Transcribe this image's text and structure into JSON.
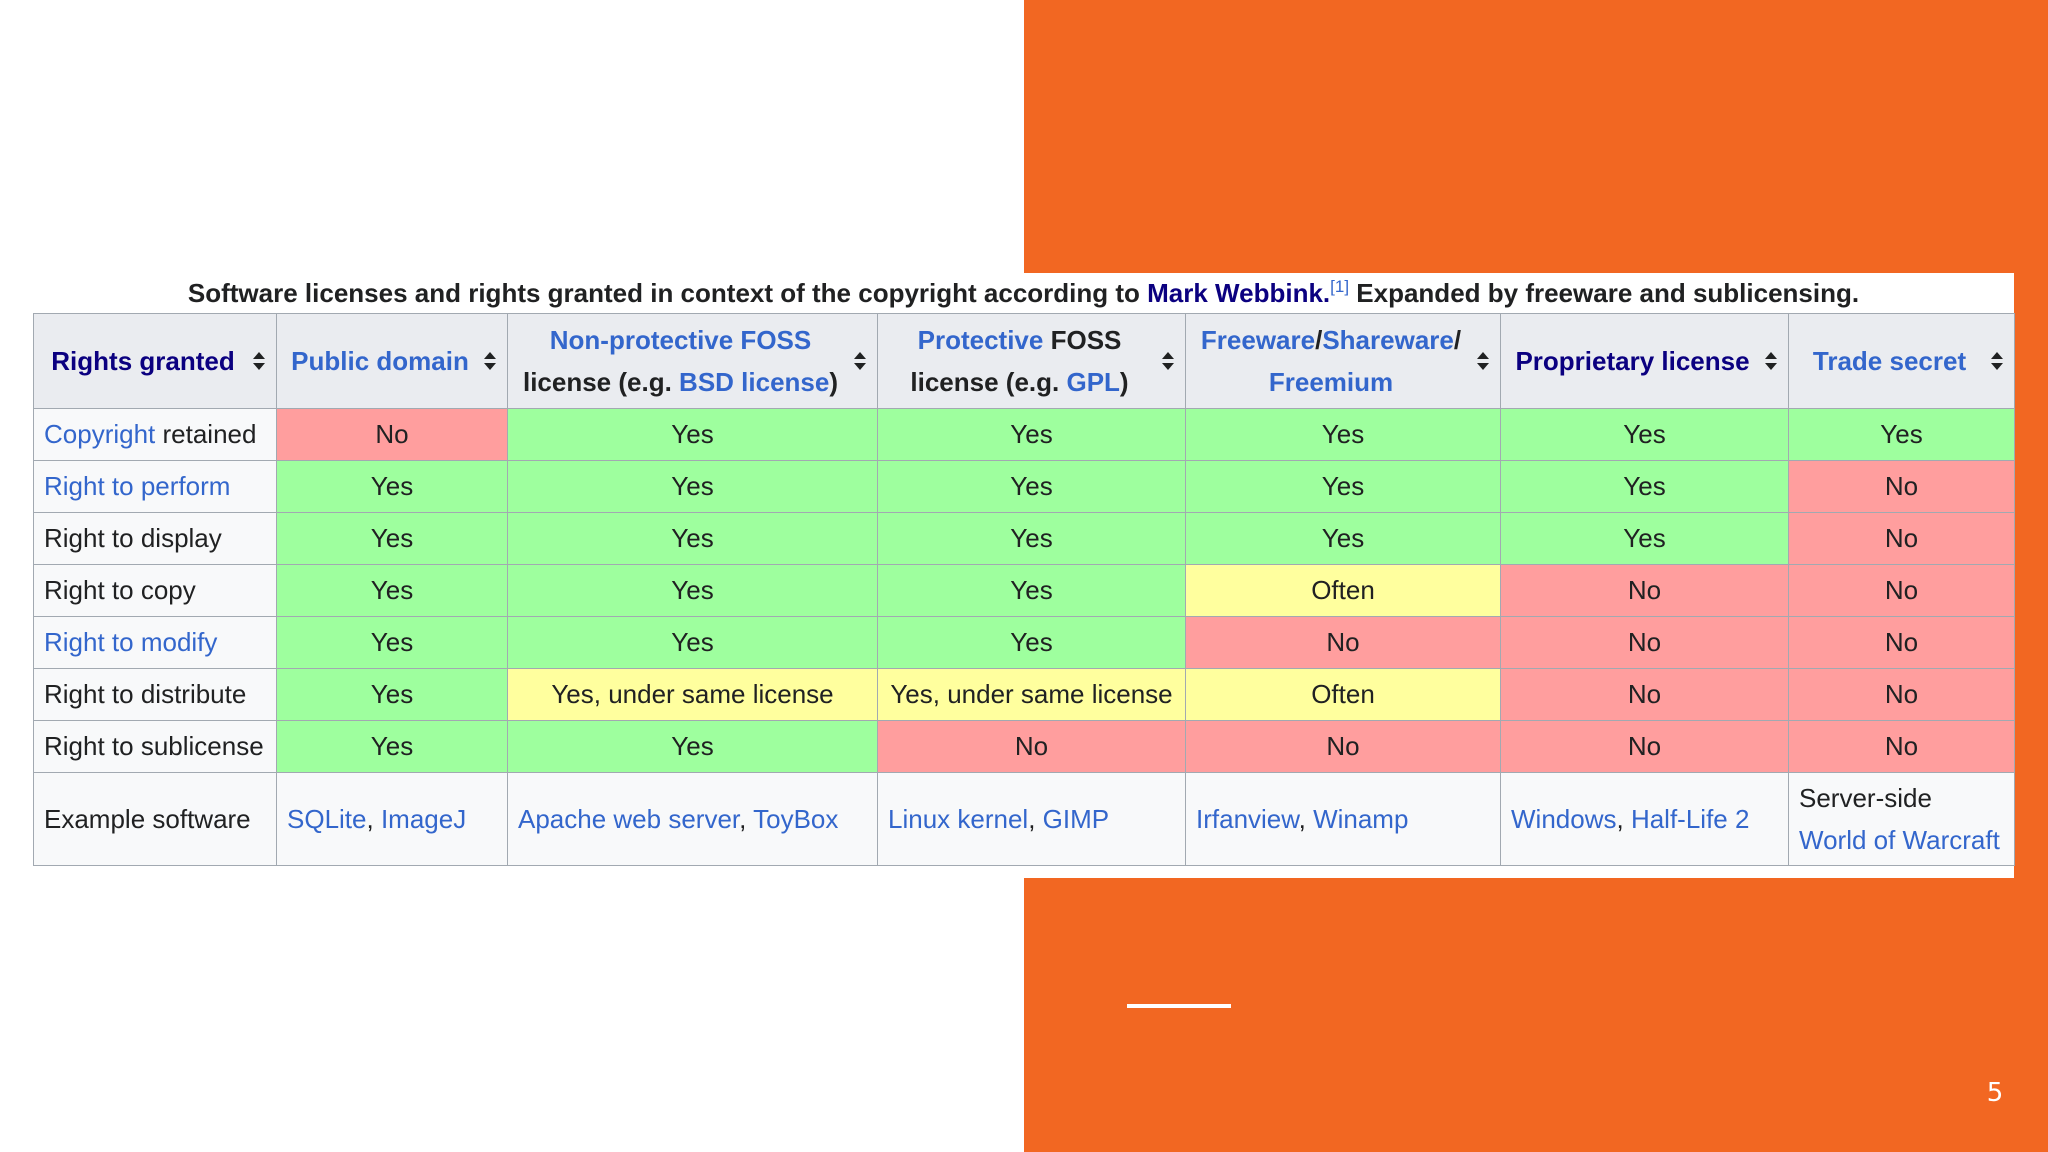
{
  "slide": {
    "page_number": "5",
    "accent_color": "#f26722"
  },
  "caption": {
    "before": "Software licenses and rights granted in context of the copyright according to ",
    "author_link": "Mark Webbink.",
    "ref": "[1]",
    "after": " Expanded by freeware and sublicensing."
  },
  "headers": {
    "rights_granted": "Rights granted",
    "public_domain": "Public domain",
    "nonprotective_link": "Non-protective FOSS",
    "nonprotective_text1": "license (e.g. ",
    "bsd_link": "BSD license",
    "close_paren": ")",
    "protective_link": "Protective",
    "protective_text1": " FOSS",
    "protective_text2": "license (e.g. ",
    "gpl_link": "GPL",
    "freeware_link": "Freeware",
    "slash1": "/",
    "shareware_link": "Shareware",
    "slash2": "/",
    "freemium_link": "Freemium",
    "proprietary": "Proprietary license",
    "trade_secret": "Trade secret"
  },
  "rows": [
    {
      "label_link": "Copyright",
      "label_text": " retained",
      "cells": [
        "No",
        "Yes",
        "Yes",
        "Yes",
        "Yes",
        "Yes"
      ]
    },
    {
      "label_link": "Right to perform",
      "label_text": "",
      "cells": [
        "Yes",
        "Yes",
        "Yes",
        "Yes",
        "Yes",
        "No"
      ]
    },
    {
      "label_link": "",
      "label_text": "Right to display",
      "cells": [
        "Yes",
        "Yes",
        "Yes",
        "Yes",
        "Yes",
        "No"
      ]
    },
    {
      "label_link": "",
      "label_text": "Right to copy",
      "cells": [
        "Yes",
        "Yes",
        "Yes",
        "Often",
        "No",
        "No"
      ]
    },
    {
      "label_link": "Right to modify",
      "label_text": "",
      "cells": [
        "Yes",
        "Yes",
        "Yes",
        "No",
        "No",
        "No"
      ]
    },
    {
      "label_link": "",
      "label_text": "Right to distribute",
      "cells": [
        "Yes",
        "Yes, under same license",
        "Yes, under same license",
        "Often",
        "No",
        "No"
      ]
    },
    {
      "label_link": "",
      "label_text": "Right to sublicense",
      "cells": [
        "Yes",
        "Yes",
        "No",
        "No",
        "No",
        "No"
      ]
    }
  ],
  "example": {
    "label": "Example software",
    "pd": [
      "SQLite",
      "ImageJ"
    ],
    "nonprot": [
      "Apache web server",
      "ToyBox"
    ],
    "prot": [
      "Linux kernel",
      "GIMP"
    ],
    "freeware": [
      "Irfanview",
      "Winamp"
    ],
    "proprietary": [
      "Windows",
      "Half-Life 2"
    ],
    "trade_secret_text": "Server-side",
    "trade_secret_link": "World of Warcraft",
    "separator": ", "
  },
  "cell_colors": {
    "Yes": "#9eff9e",
    "No": "#ff9e9e",
    "Often": "#ffff9e",
    "Yes, under same license": "#ffff9e"
  }
}
